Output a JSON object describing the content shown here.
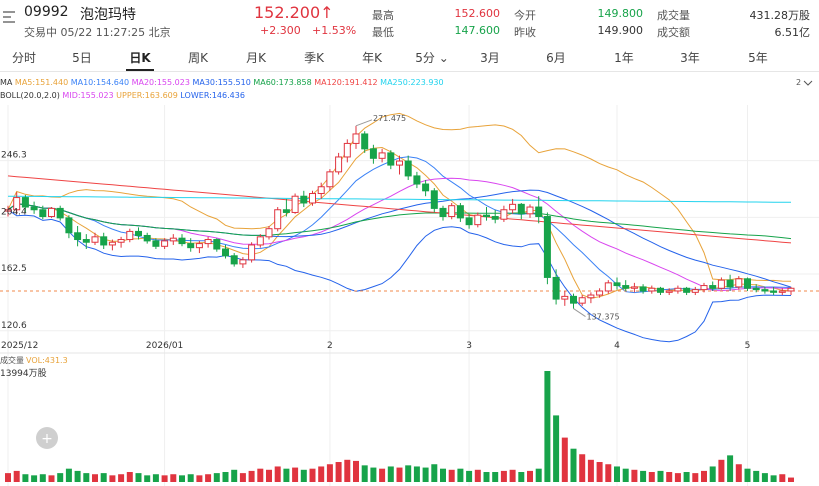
{
  "stock": {
    "code": "09992",
    "name": "泡泡玛特",
    "status_label": "交易中",
    "datetime": "05/22 11:27:25 北京",
    "price": "152.200",
    "arrow": "↑",
    "change": "+2.300",
    "change_pct": "+1.53%"
  },
  "quote": {
    "high_label": "最高",
    "high": "152.600",
    "low_label": "最低",
    "low": "147.600",
    "open_label": "今开",
    "open": "149.800",
    "prev_close_label": "昨收",
    "prev_close": "149.900",
    "volume_label": "成交量",
    "volume": "431.28万股",
    "amount_label": "成交额",
    "amount": "6.51亿"
  },
  "tabs": [
    {
      "label": "分时"
    },
    {
      "label": "5日"
    },
    {
      "label": "日K"
    },
    {
      "label": "周K"
    },
    {
      "label": "月K"
    },
    {
      "label": "季K"
    },
    {
      "label": "年K"
    },
    {
      "label": "5分"
    },
    {
      "label": "3月"
    },
    {
      "label": "6月"
    },
    {
      "label": "1年"
    },
    {
      "label": "3年"
    },
    {
      "label": "5年"
    }
  ],
  "active_tab": "日K",
  "dropdown_caret": "⌄",
  "chart_data": {
    "type": "candlestick",
    "ma_legend": [
      {
        "text": "MA",
        "color": "#333333"
      },
      {
        "text": "MA5:151.440",
        "color": "#e8a33a"
      },
      {
        "text": "MA10:154.640",
        "color": "#3b82f6"
      },
      {
        "text": "MA20:155.023",
        "color": "#d946ef"
      },
      {
        "text": "MA30:155.510",
        "color": "#2563eb"
      },
      {
        "text": "MA60:173.858",
        "color": "#16a34a"
      },
      {
        "text": "MA120:191.412",
        "color": "#ef4444"
      },
      {
        "text": "MA250:223.930",
        "color": "#22d3ee"
      }
    ],
    "boll_legend": [
      {
        "text": "BOLL(20.0,2.0)",
        "color": "#333333"
      },
      {
        "text": "MID:155.023",
        "color": "#d946ef"
      },
      {
        "text": "UPPER:163.609",
        "color": "#e8a33a"
      },
      {
        "text": "LOWER:146.436",
        "color": "#2563eb"
      }
    ],
    "legend_toggle": "2",
    "y_ticks": [
      "246.3",
      "204.4",
      "162.5",
      "120.6"
    ],
    "x_ticks": [
      "2025/12",
      "2026/01",
      "2",
      "3",
      "4",
      "5"
    ],
    "max_label": "271.475",
    "min_label": "137.375",
    "current_price_line": 150.0,
    "volume_title": "成交量",
    "volume_legend": "VOL:431.3",
    "volume_max_label": "13994万股",
    "add_button": "+",
    "candles": [
      [
        209,
        213,
        205,
        210
      ],
      [
        210,
        223,
        207,
        219
      ],
      [
        219,
        221,
        208,
        212
      ],
      [
        212,
        216,
        207,
        210
      ],
      [
        210,
        213,
        203,
        205
      ],
      [
        205,
        212,
        204,
        211
      ],
      [
        211,
        213,
        202,
        204
      ],
      [
        204,
        206,
        189,
        193
      ],
      [
        193,
        198,
        183,
        188
      ],
      [
        188,
        192,
        181,
        186
      ],
      [
        186,
        193,
        184,
        190
      ],
      [
        190,
        193,
        181,
        184
      ],
      [
        184,
        188,
        180,
        186
      ],
      [
        186,
        190,
        182,
        188
      ],
      [
        188,
        196,
        186,
        194
      ],
      [
        194,
        197,
        188,
        191
      ],
      [
        191,
        193,
        185,
        187
      ],
      [
        187,
        189,
        181,
        183
      ],
      [
        183,
        189,
        181,
        187
      ],
      [
        187,
        192,
        184,
        189
      ],
      [
        189,
        192,
        183,
        185
      ],
      [
        185,
        189,
        179,
        182
      ],
      [
        182,
        187,
        178,
        185
      ],
      [
        185,
        190,
        182,
        188
      ],
      [
        188,
        189,
        179,
        181
      ],
      [
        181,
        184,
        174,
        176
      ],
      [
        176,
        178,
        168,
        170
      ],
      [
        170,
        175,
        167,
        173
      ],
      [
        173,
        186,
        171,
        184
      ],
      [
        184,
        192,
        182,
        190
      ],
      [
        190,
        198,
        188,
        196
      ],
      [
        196,
        212,
        194,
        210
      ],
      [
        210,
        218,
        205,
        208
      ],
      [
        208,
        222,
        207,
        220
      ],
      [
        220,
        224,
        212,
        215
      ],
      [
        215,
        224,
        213,
        222
      ],
      [
        222,
        230,
        218,
        227
      ],
      [
        227,
        240,
        224,
        238
      ],
      [
        238,
        252,
        236,
        249
      ],
      [
        249,
        262,
        245,
        259
      ],
      [
        259,
        272,
        255,
        266
      ],
      [
        266,
        268,
        252,
        255
      ],
      [
        255,
        258,
        244,
        248
      ],
      [
        248,
        255,
        245,
        252
      ],
      [
        252,
        254,
        240,
        243
      ],
      [
        243,
        250,
        236,
        246
      ],
      [
        246,
        250,
        232,
        235
      ],
      [
        235,
        238,
        226,
        229
      ],
      [
        229,
        232,
        220,
        224
      ],
      [
        224,
        226,
        208,
        211
      ],
      [
        211,
        213,
        202,
        205
      ],
      [
        205,
        215,
        203,
        213
      ],
      [
        213,
        215,
        201,
        204
      ],
      [
        204,
        207,
        196,
        199
      ],
      [
        199,
        208,
        197,
        206
      ],
      [
        206,
        212,
        202,
        205
      ],
      [
        205,
        210,
        200,
        203
      ],
      [
        203,
        213,
        201,
        210
      ],
      [
        210,
        218,
        207,
        214
      ],
      [
        214,
        215,
        203,
        207
      ],
      [
        207,
        214,
        204,
        212
      ],
      [
        212,
        220,
        200,
        205
      ],
      [
        205,
        208,
        155,
        160
      ],
      [
        160,
        166,
        140,
        144
      ],
      [
        144,
        150,
        139,
        146
      ],
      [
        146,
        148,
        137,
        141
      ],
      [
        141,
        147,
        139,
        145
      ],
      [
        145,
        149,
        141,
        147
      ],
      [
        147,
        152,
        145,
        150
      ],
      [
        150,
        158,
        148,
        156
      ],
      [
        156,
        160,
        151,
        154
      ],
      [
        154,
        158,
        150,
        152
      ],
      [
        152,
        156,
        149,
        153
      ],
      [
        153,
        155,
        148,
        150
      ],
      [
        150,
        154,
        148,
        152
      ],
      [
        152,
        153,
        147,
        149
      ],
      [
        149,
        152,
        147,
        150
      ],
      [
        150,
        154,
        148,
        152
      ],
      [
        152,
        153,
        147,
        149
      ],
      [
        149,
        153,
        147,
        151
      ],
      [
        151,
        156,
        149,
        154
      ],
      [
        154,
        157,
        150,
        152
      ],
      [
        152,
        160,
        151,
        158
      ],
      [
        158,
        162,
        150,
        153
      ],
      [
        153,
        161,
        151,
        159
      ],
      [
        159,
        160,
        150,
        152
      ],
      [
        152,
        155,
        149,
        151
      ],
      [
        151,
        153,
        148,
        150
      ],
      [
        150,
        153,
        147,
        149
      ],
      [
        149,
        152,
        147,
        150
      ],
      [
        150,
        153,
        147,
        152
      ]
    ],
    "volumes": [
      8,
      10,
      7,
      6,
      7,
      6,
      8,
      12,
      10,
      8,
      7,
      8,
      6,
      7,
      9,
      8,
      6,
      7,
      6,
      7,
      6,
      7,
      6,
      7,
      8,
      9,
      11,
      8,
      10,
      12,
      11,
      14,
      12,
      13,
      11,
      12,
      14,
      16,
      18,
      20,
      19,
      15,
      13,
      12,
      14,
      13,
      15,
      14,
      13,
      16,
      12,
      11,
      12,
      10,
      11,
      9,
      9,
      10,
      11,
      9,
      10,
      12,
      100,
      60,
      40,
      30,
      25,
      20,
      18,
      16,
      14,
      12,
      11,
      10,
      9,
      10,
      9,
      8,
      9,
      8,
      10,
      14,
      20,
      24,
      16,
      12,
      10,
      8,
      6,
      7,
      4
    ]
  }
}
